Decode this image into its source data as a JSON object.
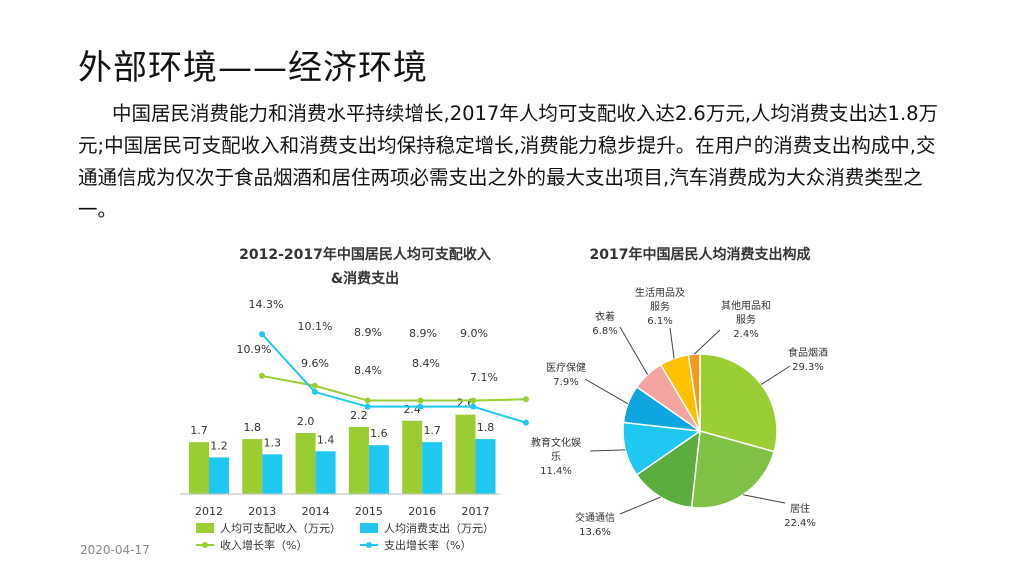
{
  "slide": {
    "title": "外部环境——经济环境",
    "paragraph": "中国居民消费能力和消费水平持续增长,2017年人均可支配收入达2.6万元,人均消费支出达1.8万元;中国居民可支配收入和消费支出均保持稳定增长,消费能力稳步提升。在用户的消费支出构成中,交通通信成为仅次于食品烟酒和居住两项必需支出之外的最大支出项目,汽车消费成为大众消费类型之一。",
    "date": "2020-04-17"
  },
  "chart_data": [
    {
      "type": "bar",
      "title_line1": "2012-2017年中国居民人均可支配收入",
      "title_line2": "&消费支出",
      "categories": [
        "2012",
        "2013",
        "2014",
        "2015",
        "2016",
        "2017"
      ],
      "series": [
        {
          "name": "人均可支配收入（万元）",
          "kind": "bar",
          "color": "#9ACD32",
          "values": [
            1.7,
            1.8,
            2.0,
            2.2,
            2.4,
            2.6
          ],
          "labels": [
            "1.7",
            "1.8",
            "2.0",
            "2.2",
            "2.4",
            "2.6"
          ]
        },
        {
          "name": "人均消费支出（万元）",
          "kind": "bar",
          "color": "#1EC8F0",
          "values": [
            1.2,
            1.3,
            1.4,
            1.6,
            1.7,
            1.8
          ],
          "labels": [
            "1.2",
            "1.3",
            "1.4",
            "1.6",
            "1.7",
            "1.8"
          ]
        },
        {
          "name": "收入增长率（%）",
          "kind": "line",
          "color": "#9ACD32",
          "values": [
            10.9,
            10.1,
            8.9,
            8.9,
            8.9,
            9.0
          ],
          "labels": [
            "10.9%",
            "10.1%",
            "8.9%",
            "8.9%",
            "8.9%",
            "9.0%"
          ]
        },
        {
          "name": "支出增长率（%）",
          "kind": "line",
          "color": "#1EC8F0",
          "values": [
            14.3,
            9.6,
            8.4,
            8.4,
            8.4,
            7.1
          ],
          "labels": [
            "14.3%",
            "9.6%",
            "8.4%",
            "8.4%",
            "8.4%",
            "7.1%"
          ]
        }
      ],
      "ylim_bars": [
        0,
        3.2
      ],
      "ylim_lines": [
        5,
        16
      ]
    },
    {
      "type": "pie",
      "title": "2017年中国居民人均消费支出构成",
      "slices": [
        {
          "label": "食品烟酒",
          "value": 29.3,
          "pct": "29.3%",
          "color": "#9ACD32"
        },
        {
          "label": "居住",
          "value": 22.4,
          "pct": "22.4%",
          "color": "#7DC242"
        },
        {
          "label": "交通通信",
          "value": 13.6,
          "pct": "13.6%",
          "color": "#5BAE3E"
        },
        {
          "label": "教育文化娱乐",
          "value": 11.4,
          "pct": "11.4%",
          "color": "#1EC8F0",
          "label_lines": [
            "教育文化娱",
            "乐"
          ]
        },
        {
          "label": "医疗保健",
          "value": 7.9,
          "pct": "7.9%",
          "color": "#0FA5E0"
        },
        {
          "label": "衣着",
          "value": 6.8,
          "pct": "6.8%",
          "color": "#F4A3A0"
        },
        {
          "label": "生活用品及服务",
          "value": 6.1,
          "pct": "6.1%",
          "color": "#FFC000",
          "label_lines": [
            "生活用品及",
            "服务"
          ]
        },
        {
          "label": "其他用品和服务",
          "value": 2.4,
          "pct": "2.4%",
          "color": "#F29A1F",
          "label_lines": [
            "其他用品和",
            "服务"
          ]
        }
      ]
    }
  ]
}
